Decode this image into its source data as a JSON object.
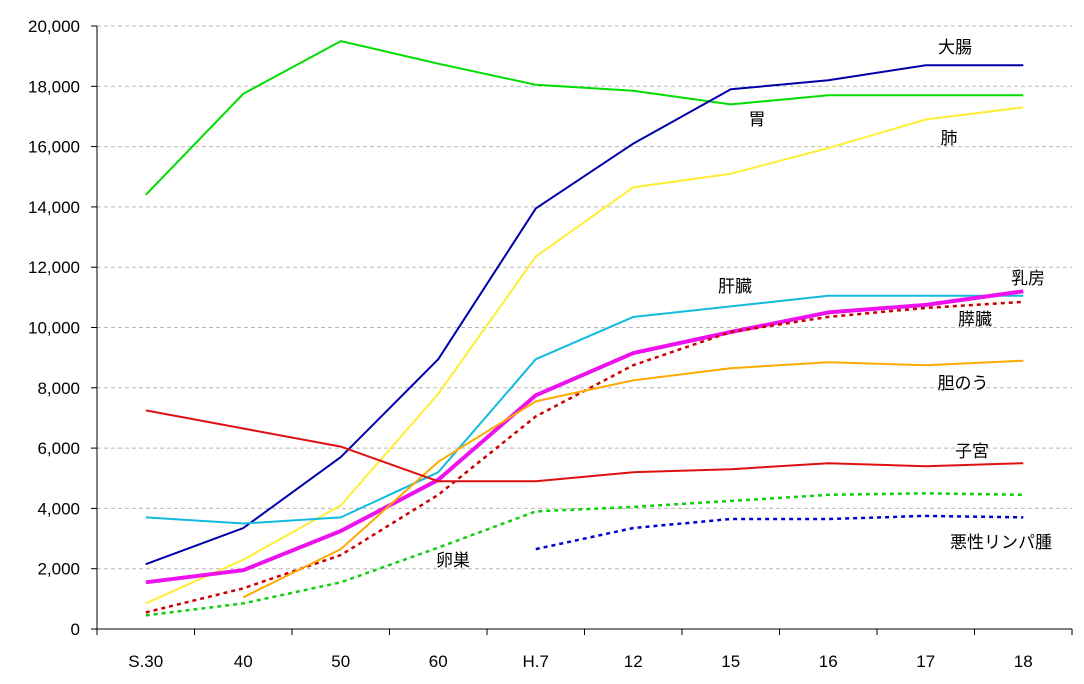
{
  "chart_data": {
    "type": "line",
    "title": "",
    "xlabel": "",
    "ylabel": "",
    "categories": [
      "S.30",
      "40",
      "50",
      "60",
      "H.7",
      "12",
      "15",
      "16",
      "17",
      "18"
    ],
    "ylim": [
      0,
      20000
    ],
    "yticks": [
      0,
      2000,
      4000,
      6000,
      8000,
      10000,
      12000,
      14000,
      16000,
      18000,
      20000
    ],
    "ytick_labels": [
      "0",
      "2,000",
      "4,000",
      "6,000",
      "8,000",
      "10,000",
      "12,000",
      "14,000",
      "16,000",
      "18,000",
      "20,000"
    ],
    "grid": "horizontal-dashed",
    "legend": "none (inline labels)",
    "series": [
      {
        "name": "胃",
        "color": "#00dd00",
        "style": "solid",
        "width": 2,
        "values": [
          14400,
          17750,
          19500,
          18750,
          18050,
          17850,
          17400,
          17700,
          17700,
          17700
        ],
        "label_pos": [
          757,
          125
        ]
      },
      {
        "name": "大腸",
        "color": "#0000aa",
        "style": "solid",
        "width": 2,
        "values": [
          2150,
          3350,
          5700,
          8950,
          13950,
          16100,
          17900,
          18200,
          18700,
          18700
        ],
        "label_pos": [
          955,
          53
        ]
      },
      {
        "name": "肺",
        "color": "#ffee33",
        "style": "solid",
        "width": 2,
        "values": [
          850,
          2300,
          4100,
          7800,
          12350,
          14650,
          15100,
          15950,
          16900,
          17300
        ],
        "label_pos": [
          949,
          144
        ]
      },
      {
        "name": "肝臓",
        "color": "#11bbdd",
        "style": "solid",
        "width": 2,
        "values": [
          3700,
          3500,
          3700,
          5200,
          8950,
          10350,
          10700,
          11050,
          11050,
          11050
        ],
        "label_pos": [
          735,
          292
        ]
      },
      {
        "name": "乳房",
        "color": "#ee11ee",
        "style": "solid",
        "width": 4,
        "values": [
          1550,
          1950,
          3250,
          4950,
          7750,
          9150,
          9850,
          10500,
          10750,
          11200
        ],
        "label_pos": [
          1028,
          284
        ]
      },
      {
        "name": "膵臓",
        "color": "#cc0000",
        "style": "dotted",
        "width": 2.5,
        "values": [
          550,
          1350,
          2450,
          4450,
          7050,
          8750,
          9850,
          10350,
          10650,
          10850
        ],
        "label_pos": [
          975,
          325
        ]
      },
      {
        "name": "胆のう",
        "color": "#ffaa00",
        "style": "solid",
        "width": 2,
        "values": [
          null,
          1050,
          2650,
          5550,
          7550,
          8250,
          8650,
          8850,
          8750,
          8900
        ],
        "label_pos": [
          963,
          389
        ]
      },
      {
        "name": "子宮",
        "color": "#dd1111",
        "style": "solid",
        "width": 2,
        "values": [
          7250,
          6650,
          6050,
          4900,
          4900,
          5200,
          5300,
          5500,
          5400,
          5500
        ],
        "label_pos": [
          972,
          457
        ]
      },
      {
        "name": "卵巣",
        "color": "#11cc11",
        "style": "dotted",
        "width": 2.5,
        "values": [
          450,
          850,
          1550,
          2700,
          3900,
          4050,
          4250,
          4450,
          4500,
          4450
        ],
        "label_pos": [
          453,
          566
        ]
      },
      {
        "name": "悪性リンパ腫",
        "color": "#0000cc",
        "style": "dotted",
        "width": 2.5,
        "values": [
          null,
          null,
          null,
          null,
          2650,
          3350,
          3650,
          3650,
          3750,
          3700
        ],
        "label_pos": [
          1001,
          548
        ]
      }
    ]
  }
}
